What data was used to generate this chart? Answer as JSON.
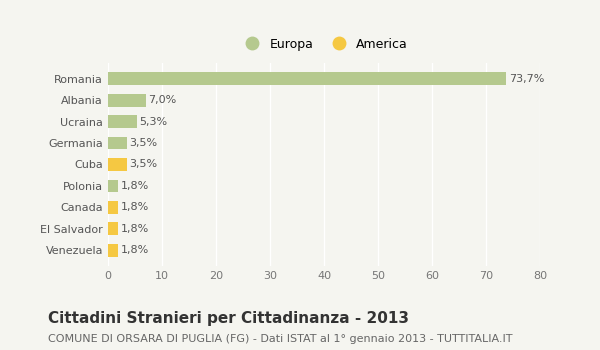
{
  "categories": [
    "Venezuela",
    "El Salvador",
    "Canada",
    "Polonia",
    "Cuba",
    "Germania",
    "Ucraina",
    "Albania",
    "Romania"
  ],
  "values": [
    1.8,
    1.8,
    1.8,
    1.8,
    3.5,
    3.5,
    5.3,
    7.0,
    73.7
  ],
  "labels": [
    "1,8%",
    "1,8%",
    "1,8%",
    "1,8%",
    "3,5%",
    "3,5%",
    "5,3%",
    "7,0%",
    "73,7%"
  ],
  "colors": [
    "#f5c842",
    "#f5c842",
    "#f5c842",
    "#b5c98e",
    "#f5c842",
    "#b5c98e",
    "#b5c98e",
    "#b5c98e",
    "#b5c98e"
  ],
  "europa_color": "#b5c98e",
  "america_color": "#f5c842",
  "background_color": "#f5f5f0",
  "title": "Cittadini Stranieri per Cittadinanza - 2013",
  "subtitle": "COMUNE DI ORSARA DI PUGLIA (FG) - Dati ISTAT al 1° gennaio 2013 - TUTTITALIA.IT",
  "xlim": [
    0,
    80
  ],
  "xticks": [
    0,
    10,
    20,
    30,
    40,
    50,
    60,
    70,
    80
  ],
  "grid_color": "#ffffff",
  "bar_height": 0.6,
  "title_fontsize": 11,
  "subtitle_fontsize": 8,
  "label_fontsize": 8,
  "tick_fontsize": 8,
  "legend_fontsize": 9
}
